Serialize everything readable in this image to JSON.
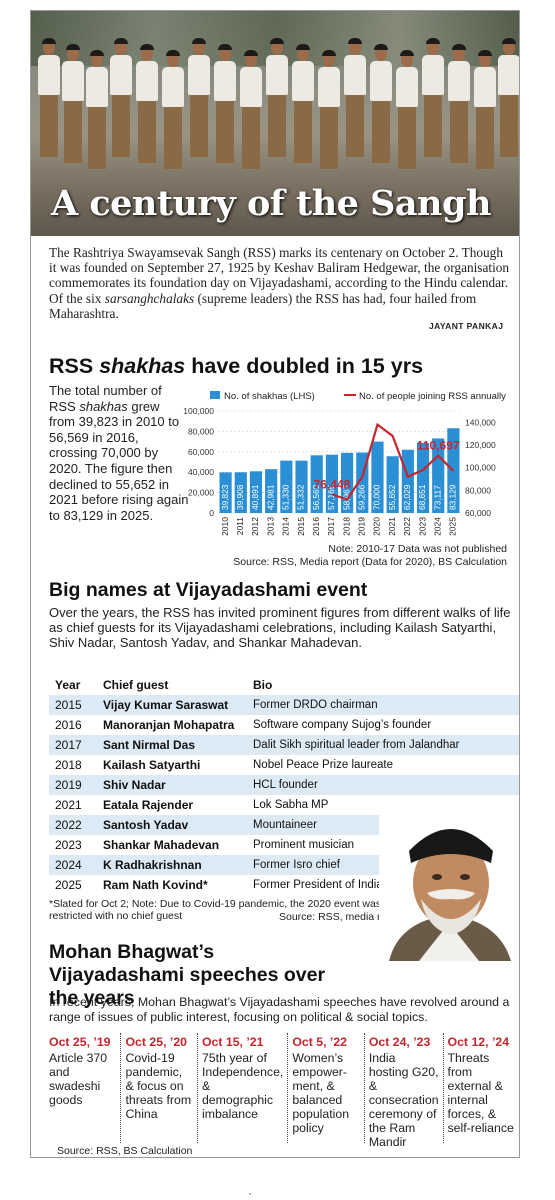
{
  "hero": {
    "title": "A century of the Sangh"
  },
  "intro": {
    "part1": "The Rashtriya Swayamsevak Sangh (RSS) marks its centenary on October 2. Though it was founded on September 27, 1925 by Keshav Baliram Hedgewar, the organisation commemorates its foundation day on Vijayadashami, according to the Hindu calendar. Of the six ",
    "italic": "sarsanghchalaks",
    "part2": " (supreme leaders) the RSS has had, four hailed from Maharashtra.",
    "credit": "JAYANT PANKAJ"
  },
  "section1": {
    "title_a": "RSS ",
    "title_italic": "shakhas",
    "title_b": " have doubled in 15 yrs",
    "text_a": "The total number of RSS ",
    "text_italic": "shakhas",
    "text_b": " grew from 39,823 in 2010 to 56,569 in 2016, crossing 70,000 by 2020. The figure then declined to 55,652 in 2021 before rising again to 83,129 in 2025.",
    "note": "Note: 2010-17 Data was not published",
    "source": "Source: RSS, Media report (Data for 2020), BS Calculation"
  },
  "chart_data": {
    "type": "bar",
    "categories": [
      "2010",
      "2011",
      "2012",
      "2013",
      "2014",
      "2015",
      "2016",
      "2017",
      "2018",
      "2019",
      "2020",
      "2021",
      "2022",
      "2023",
      "2024",
      "2025"
    ],
    "series": [
      {
        "name": "No. of shakhas (LHS)",
        "type": "bar",
        "axis": "left",
        "color": "#2b8fd6",
        "values": [
          39823,
          39908,
          40891,
          42981,
          51330,
          51332,
          56569,
          57165,
          58967,
          59266,
          70000,
          55652,
          62029,
          68651,
          73117,
          83129
        ],
        "labels": [
          "39,823",
          "39,908",
          "40,891",
          "42,981",
          "51,330",
          "51,332",
          "56,569",
          "57,165",
          "58,967",
          "59,266",
          "70,000",
          "55,652",
          "62,029",
          "68,651",
          "73,117",
          "83,129"
        ]
      },
      {
        "name": "No. of people joining RSS annually (RHS)",
        "type": "line",
        "axis": "right",
        "color": "#c4262e",
        "x": [
          "2017",
          "2018",
          "2019",
          "2020",
          "2021",
          "2022",
          "2023",
          "2024",
          "2025"
        ],
        "values": [
          76448,
          72000,
          92000,
          138000,
          128000,
          92000,
          98000,
          110697,
          97000
        ],
        "callouts": [
          {
            "x": "2017",
            "label": "76,448"
          },
          {
            "x": "2024",
            "label": "110,697"
          }
        ]
      }
    ],
    "ylim_left": [
      0,
      100000
    ],
    "yticks_left": [
      "0",
      "20,000",
      "40,000",
      "60,000",
      "80,000",
      "100,000"
    ],
    "ylim_right": [
      60000,
      150000
    ],
    "yticks_right": [
      "60,000",
      "80,000",
      "100,000",
      "120,000",
      "140,000"
    ]
  },
  "section2": {
    "title": "Big names at Vijayadashami event",
    "text": "Over the years, the RSS has invited prominent figures from different walks of life as chief guests for its Vijayadashami celebrations, including Kailash Satyarthi, Shiv Nadar, Santosh Yadav, and Shankar Mahadevan.",
    "headers": [
      "Year",
      "Chief guest",
      "Bio"
    ],
    "rows": [
      [
        "2015",
        "Vijay Kumar Saraswat",
        "Former DRDO chairman"
      ],
      [
        "2016",
        "Manoranjan Mohapatra",
        "Software company Sujog’s founder"
      ],
      [
        "2017",
        "Sant Nirmal Das",
        "Dalit Sikh spiritual leader from Jalandhar"
      ],
      [
        "2018",
        "Kailash Satyarthi",
        "Nobel Peace Prize laureate"
      ],
      [
        "2019",
        "Shiv Nadar",
        "HCL founder"
      ],
      [
        "2021",
        "Eatala Rajender",
        "Lok Sabha MP"
      ],
      [
        "2022",
        "Santosh Yadav",
        "Mountaineer"
      ],
      [
        "2023",
        "Shankar Mahadevan",
        "Prominent musician"
      ],
      [
        "2024",
        "K Radhakrishnan",
        "Former Isro chief"
      ],
      [
        "2025",
        "Ram Nath Kovind*",
        "Former President of India"
      ]
    ],
    "footnote": "*Slated for Oct 2; Note: Due to Covid-19 pandemic, the 2020 event was restricted with no chief guest",
    "source": "Source: RSS, media reports"
  },
  "section3": {
    "title": "Mohan Bhagwat’s Vijayadashami speeches over the years",
    "text": "In recent years, Mohan Bhagwat’s Vijayadashami speeches have revolved around a range of issues of public interest, focusing on political & social topics.",
    "speeches": [
      {
        "date": "Oct 25, ’19",
        "topic": "Article 370 and swadeshi goods"
      },
      {
        "date": "Oct 25, ’20",
        "topic": "Covid-19 pandemic, & focus on threats from China"
      },
      {
        "date": "Oct 15, ’21",
        "topic": "75th year of Independence, & demographic imbalance"
      },
      {
        "date": "Oct 5, ’22",
        "topic": "Women’s empower-ment, & balanced population policy"
      },
      {
        "date": "Oct 24, ’23",
        "topic": "India hosting G20, & consecration ceremony of the Ram Mandir"
      },
      {
        "date": "Oct 12, ’24",
        "topic": "Threats from external & internal forces, & self-reliance"
      }
    ],
    "source": "Source: RSS, BS Calculation"
  },
  "colors": {
    "accent_red": "#c4262e",
    "bar_blue": "#2b8fd6",
    "table_stripe": "#dceaf6"
  }
}
